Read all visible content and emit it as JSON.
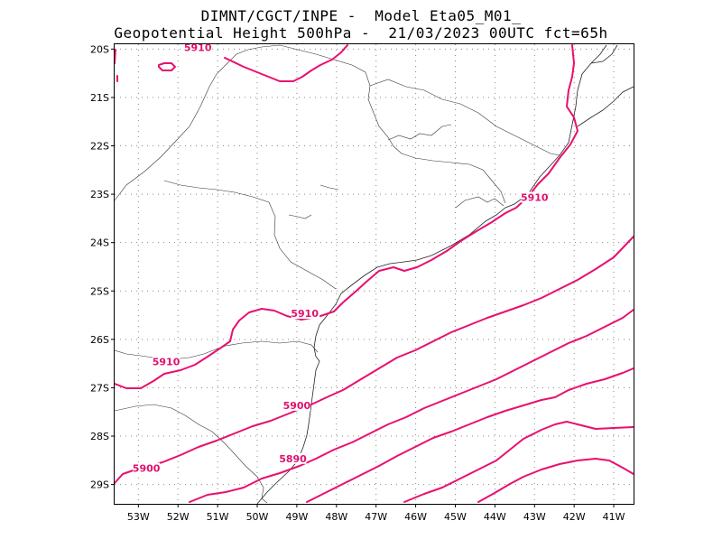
{
  "header": {
    "line1": "DIMNT/CGCT/INPE -  Model Eta05_M01_",
    "line2": "Geopotential Height 500hPa -  21/03/2023 00UTC fct=65h"
  },
  "map": {
    "lon_range": [
      -53.6,
      -40.5
    ],
    "lat_range": [
      -29.4,
      -19.9
    ],
    "lat_ticks": [
      {
        "value": -20,
        "label": "20S"
      },
      {
        "value": -21,
        "label": "21S"
      },
      {
        "value": -22,
        "label": "22S"
      },
      {
        "value": -23,
        "label": "23S"
      },
      {
        "value": -24,
        "label": "24S"
      },
      {
        "value": -25,
        "label": "25S"
      },
      {
        "value": -26,
        "label": "26S"
      },
      {
        "value": -27,
        "label": "27S"
      },
      {
        "value": -28,
        "label": "28S"
      },
      {
        "value": -29,
        "label": "29S"
      }
    ],
    "lon_ticks": [
      {
        "value": -53,
        "label": "53W"
      },
      {
        "value": -52,
        "label": "52W"
      },
      {
        "value": -51,
        "label": "51W"
      },
      {
        "value": -50,
        "label": "50W"
      },
      {
        "value": -49,
        "label": "49W"
      },
      {
        "value": -48,
        "label": "48W"
      },
      {
        "value": -47,
        "label": "47W"
      },
      {
        "value": -46,
        "label": "46W"
      },
      {
        "value": -45,
        "label": "45W"
      },
      {
        "value": -44,
        "label": "44W"
      },
      {
        "value": -43,
        "label": "43W"
      },
      {
        "value": -42,
        "label": "42W"
      },
      {
        "value": -41,
        "label": "41W"
      }
    ],
    "contour_color": "#e8106f",
    "contour_labels": [
      {
        "text": "5910",
        "lon": -51.5,
        "lat": -20.0
      },
      {
        "text": "5910",
        "lon": -43.0,
        "lat": -23.1
      },
      {
        "text": "5910",
        "lon": -48.8,
        "lat": -25.5
      },
      {
        "text": "5910",
        "lon": -52.3,
        "lat": -26.5
      },
      {
        "text": "5900",
        "lon": -49.0,
        "lat": -27.4
      },
      {
        "text": "5900",
        "lon": -52.8,
        "lat": -28.7
      },
      {
        "text": "5890",
        "lon": -49.1,
        "lat": -28.5
      }
    ]
  }
}
